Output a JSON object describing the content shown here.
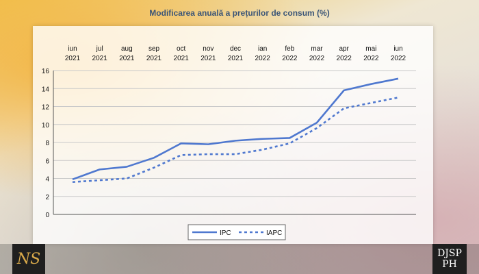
{
  "chart_data": {
    "type": "line",
    "title": "Modificarea anuală a prețurilor de consum (%)",
    "categories": [
      "iun 2021",
      "iul 2021",
      "aug 2021",
      "sep 2021",
      "oct 2021",
      "nov 2021",
      "dec 2021",
      "ian 2022",
      "feb 2022",
      "mar 2022",
      "apr 2022",
      "mai 2022",
      "iun 2022"
    ],
    "category_labels": [
      [
        "iun",
        "2021"
      ],
      [
        "jul",
        "2021"
      ],
      [
        "aug",
        "2021"
      ],
      [
        "sep",
        "2021"
      ],
      [
        "oct",
        "2021"
      ],
      [
        "nov",
        "2021"
      ],
      [
        "dec",
        "2021"
      ],
      [
        "ian",
        "2022"
      ],
      [
        "feb",
        "2022"
      ],
      [
        "mar",
        "2022"
      ],
      [
        "apr",
        "2022"
      ],
      [
        "mai",
        "2022"
      ],
      [
        "iun",
        "2022"
      ]
    ],
    "ylim": [
      0,
      16
    ],
    "yticks": [
      0,
      2,
      4,
      6,
      8,
      10,
      12,
      14,
      16
    ],
    "grid": true,
    "x_axis_position": "top",
    "legend_position": "bottom",
    "series": [
      {
        "name": "IPC",
        "style": "solid",
        "color": "#4f78cf",
        "values": [
          3.9,
          5.0,
          5.3,
          6.3,
          7.9,
          7.8,
          8.2,
          8.4,
          8.5,
          10.2,
          13.8,
          14.5,
          15.1
        ]
      },
      {
        "name": "IAPC",
        "style": "dashed",
        "color": "#4f78cf",
        "values": [
          3.6,
          3.8,
          4.0,
          5.2,
          6.6,
          6.7,
          6.7,
          7.2,
          7.9,
          9.6,
          11.8,
          12.4,
          13.0
        ]
      }
    ]
  },
  "branding": {
    "left_logo": "NS",
    "right_logo_top": "DJSP",
    "right_logo_bottom": "PH"
  }
}
